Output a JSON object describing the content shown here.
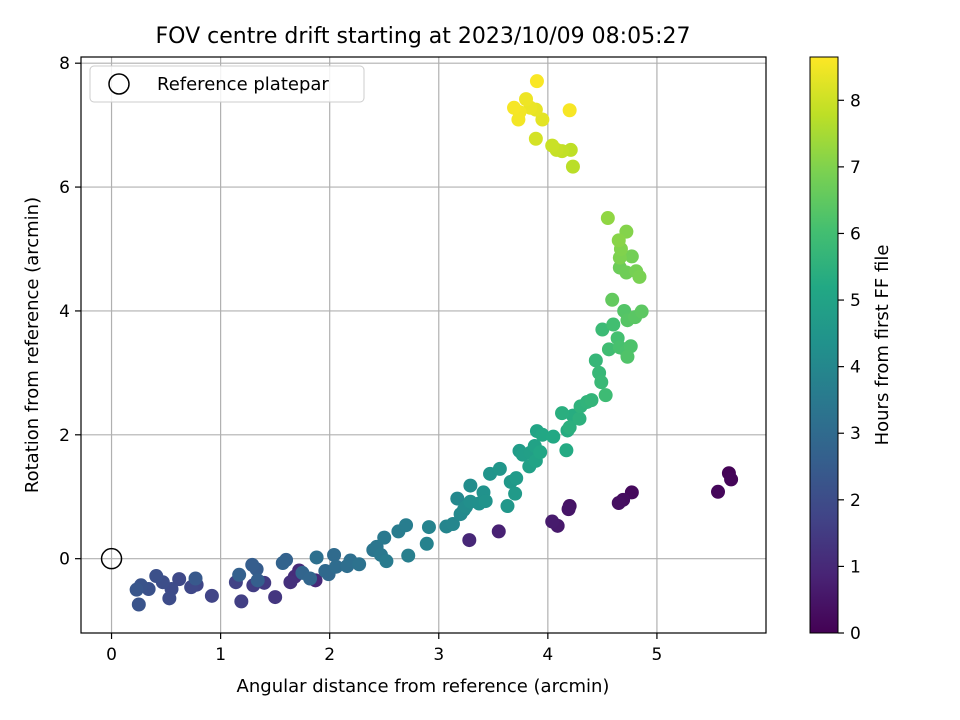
{
  "chart_data": {
    "type": "scatter",
    "title": "FOV centre drift starting at 2023/10/09 08:05:27",
    "xlabel": "Angular distance from reference (arcmin)",
    "ylabel": "Rotation from reference (arcmin)",
    "xlim": [
      -0.28,
      6.0
    ],
    "ylim": [
      -1.2,
      8.1
    ],
    "xticks": [
      "0",
      "1",
      "2",
      "3",
      "4",
      "5"
    ],
    "yticks": [
      "0",
      "2",
      "4",
      "6",
      "8"
    ],
    "grid": true,
    "legend": {
      "position": "top-left",
      "label": "Reference platepar"
    },
    "reference_point": {
      "x": 0,
      "y": 0
    },
    "colorbar": {
      "label": "Hours from first FF file",
      "range": [
        0,
        8.65
      ],
      "ticks": [
        "0",
        "1",
        "2",
        "3",
        "4",
        "5",
        "6",
        "7",
        "8"
      ],
      "colormap": "viridis"
    },
    "points": [
      [
        5.66,
        1.38,
        0.05
      ],
      [
        5.68,
        1.28,
        0.1
      ],
      [
        5.56,
        1.08,
        0.15
      ],
      [
        4.77,
        1.07,
        0.2
      ],
      [
        4.69,
        0.95,
        0.3
      ],
      [
        4.65,
        0.9,
        0.35
      ],
      [
        4.2,
        0.85,
        0.45
      ],
      [
        4.19,
        0.8,
        0.5
      ],
      [
        4.09,
        0.53,
        0.6
      ],
      [
        4.04,
        0.6,
        0.65
      ],
      [
        3.55,
        0.44,
        0.8
      ],
      [
        3.28,
        0.3,
        0.95
      ],
      [
        1.87,
        -0.35,
        1.0
      ],
      [
        1.72,
        -0.19,
        1.05
      ],
      [
        1.68,
        -0.29,
        1.1
      ],
      [
        1.64,
        -0.38,
        1.2
      ],
      [
        1.5,
        -0.62,
        1.35
      ],
      [
        1.4,
        -0.39,
        1.45
      ],
      [
        1.3,
        -0.43,
        1.55
      ],
      [
        1.19,
        -0.69,
        1.6
      ],
      [
        1.14,
        -0.38,
        1.7
      ],
      [
        0.92,
        -0.6,
        1.75
      ],
      [
        0.78,
        -0.42,
        1.8
      ],
      [
        0.73,
        -0.46,
        1.85
      ],
      [
        0.62,
        -0.33,
        1.9
      ],
      [
        0.55,
        -0.49,
        1.95
      ],
      [
        0.53,
        -0.64,
        2.0
      ],
      [
        0.47,
        -0.38,
        2.05
      ],
      [
        0.41,
        -0.28,
        2.1
      ],
      [
        0.34,
        -0.49,
        2.15
      ],
      [
        0.27,
        -0.43,
        2.2
      ],
      [
        0.25,
        -0.74,
        2.25
      ],
      [
        0.23,
        -0.5,
        2.3
      ],
      [
        0.77,
        -0.32,
        2.4
      ],
      [
        1.33,
        -0.17,
        2.5
      ],
      [
        1.29,
        -0.1,
        2.55
      ],
      [
        1.34,
        -0.35,
        2.6
      ],
      [
        1.17,
        -0.26,
        2.65
      ],
      [
        1.6,
        -0.02,
        2.7
      ],
      [
        1.57,
        -0.07,
        2.75
      ],
      [
        1.75,
        -0.23,
        2.8
      ],
      [
        1.82,
        -0.32,
        2.85
      ],
      [
        1.99,
        -0.25,
        2.9
      ],
      [
        1.96,
        -0.2,
        2.95
      ],
      [
        2.04,
        0.06,
        3.0
      ],
      [
        2.06,
        -0.13,
        3.05
      ],
      [
        2.16,
        -0.12,
        3.1
      ],
      [
        2.19,
        -0.03,
        3.15
      ],
      [
        1.88,
        0.02,
        3.2
      ],
      [
        2.27,
        -0.09,
        3.25
      ],
      [
        2.4,
        0.14,
        3.35
      ],
      [
        2.43,
        0.19,
        3.4
      ],
      [
        2.47,
        0.06,
        3.45
      ],
      [
        2.5,
        0.34,
        3.5
      ],
      [
        2.52,
        -0.04,
        3.55
      ],
      [
        2.63,
        0.44,
        3.6
      ],
      [
        2.7,
        0.54,
        3.65
      ],
      [
        2.72,
        0.05,
        3.7
      ],
      [
        2.89,
        0.24,
        3.8
      ],
      [
        2.91,
        0.51,
        3.85
      ],
      [
        3.07,
        0.52,
        3.9
      ],
      [
        3.13,
        0.56,
        3.95
      ],
      [
        3.17,
        0.97,
        4.0
      ],
      [
        3.2,
        0.72,
        4.05
      ],
      [
        3.23,
        0.79,
        4.1
      ],
      [
        3.25,
        0.84,
        4.15
      ],
      [
        3.29,
        1.18,
        4.2
      ],
      [
        3.29,
        0.92,
        4.25
      ],
      [
        3.37,
        0.89,
        4.3
      ],
      [
        3.41,
        1.07,
        4.35
      ],
      [
        3.43,
        0.93,
        4.4
      ],
      [
        3.47,
        1.37,
        4.45
      ],
      [
        3.56,
        1.45,
        4.5
      ],
      [
        3.63,
        0.85,
        4.55
      ],
      [
        3.66,
        1.24,
        4.6
      ],
      [
        3.7,
        1.05,
        4.65
      ],
      [
        3.71,
        1.3,
        4.7
      ],
      [
        3.74,
        1.74,
        4.75
      ],
      [
        3.77,
        1.68,
        4.8
      ],
      [
        3.84,
        1.71,
        4.85
      ],
      [
        3.83,
        1.49,
        4.9
      ],
      [
        3.88,
        1.82,
        4.95
      ],
      [
        3.89,
        1.58,
        5.0
      ],
      [
        3.9,
        2.06,
        5.05
      ],
      [
        3.93,
        1.72,
        5.1
      ],
      [
        3.95,
        2.0,
        5.15
      ],
      [
        4.05,
        1.97,
        5.2
      ],
      [
        4.17,
        1.75,
        5.25
      ],
      [
        4.18,
        2.07,
        5.3
      ],
      [
        4.23,
        2.31,
        5.35
      ],
      [
        4.13,
        2.35,
        5.4
      ],
      [
        4.2,
        2.12,
        5.45
      ],
      [
        4.29,
        2.26,
        5.5
      ],
      [
        4.3,
        2.46,
        5.55
      ],
      [
        4.36,
        2.53,
        5.6
      ],
      [
        4.4,
        2.56,
        5.65
      ],
      [
        4.44,
        3.2,
        5.7
      ],
      [
        4.47,
        3.0,
        5.75
      ],
      [
        4.49,
        2.85,
        5.8
      ],
      [
        4.5,
        3.7,
        5.85
      ],
      [
        4.53,
        2.64,
        5.9
      ],
      [
        4.56,
        3.38,
        5.95
      ],
      [
        4.6,
        3.78,
        6.0
      ],
      [
        4.64,
        3.56,
        6.05
      ],
      [
        4.66,
        3.41,
        6.1
      ],
      [
        4.72,
        3.35,
        6.15
      ],
      [
        4.76,
        3.43,
        6.2
      ],
      [
        4.73,
        3.26,
        6.25
      ],
      [
        4.7,
        4.0,
        6.3
      ],
      [
        4.73,
        3.85,
        6.35
      ],
      [
        4.8,
        3.9,
        6.4
      ],
      [
        4.86,
        3.99,
        6.45
      ],
      [
        4.59,
        4.18,
        6.55
      ],
      [
        4.66,
        4.7,
        6.7
      ],
      [
        4.72,
        4.62,
        6.75
      ],
      [
        4.77,
        4.88,
        6.8
      ],
      [
        4.81,
        4.64,
        6.85
      ],
      [
        4.84,
        4.55,
        6.9
      ],
      [
        4.66,
        4.86,
        6.95
      ],
      [
        4.67,
        5.0,
        7.0
      ],
      [
        4.72,
        5.28,
        7.05
      ],
      [
        4.65,
        5.14,
        7.1
      ],
      [
        4.55,
        5.5,
        7.2
      ],
      [
        4.23,
        6.33,
        7.75
      ],
      [
        4.21,
        6.6,
        7.8
      ],
      [
        4.13,
        6.58,
        7.85
      ],
      [
        4.08,
        6.6,
        7.9
      ],
      [
        4.04,
        6.67,
        7.95
      ],
      [
        3.89,
        6.78,
        8.1
      ],
      [
        3.95,
        7.09,
        8.3
      ],
      [
        3.89,
        7.25,
        8.35
      ],
      [
        3.84,
        7.28,
        8.4
      ],
      [
        3.8,
        7.42,
        8.45
      ],
      [
        3.74,
        7.21,
        8.5
      ],
      [
        3.73,
        7.09,
        8.52
      ],
      [
        3.69,
        7.28,
        8.55
      ],
      [
        4.2,
        7.24,
        8.57
      ],
      [
        3.9,
        7.71,
        8.6
      ]
    ]
  }
}
